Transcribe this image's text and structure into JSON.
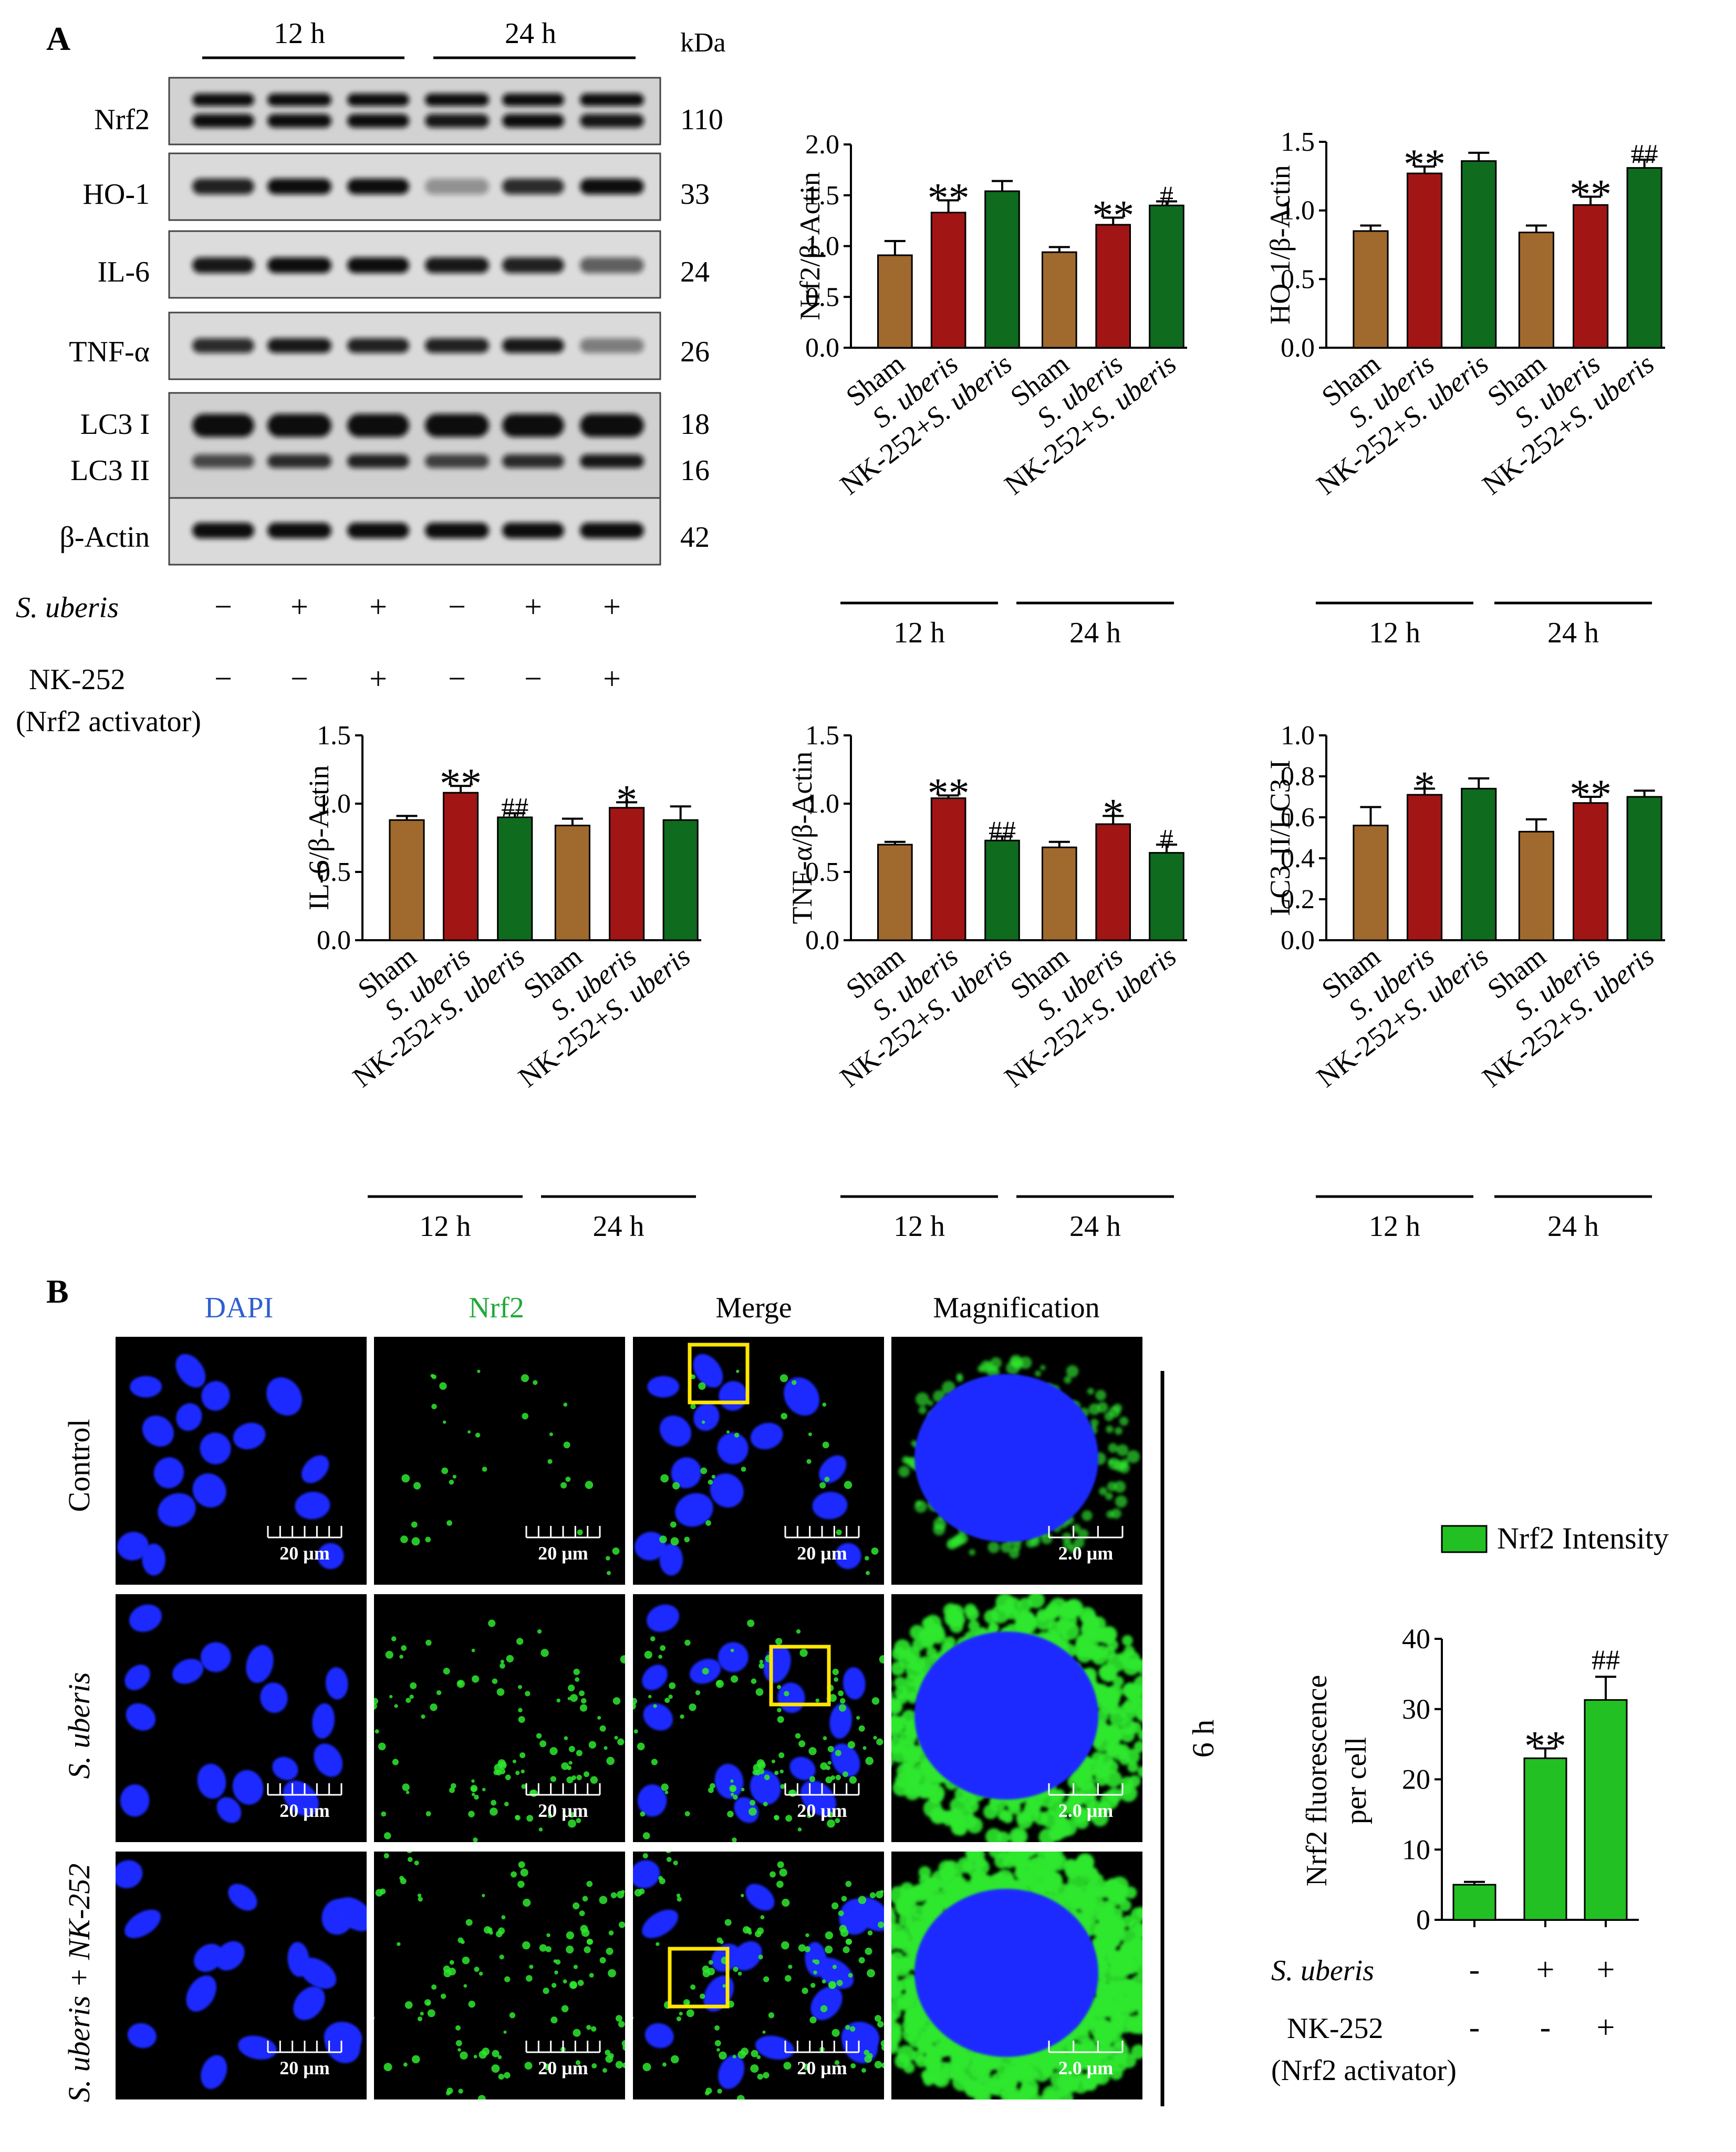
{
  "panel_a": {
    "label": "A",
    "timepoints": [
      "12 h",
      "24 h"
    ],
    "kda_header": "kDa",
    "blots": [
      {
        "name": "Nrf2",
        "kda": "110"
      },
      {
        "name": "HO-1",
        "kda": "33"
      },
      {
        "name": "IL-6",
        "kda": "24"
      },
      {
        "name": "TNF-α",
        "kda": "26"
      },
      {
        "name": "LC3 I",
        "kda": "18"
      },
      {
        "name": "LC3 II",
        "kda": "16"
      },
      {
        "name": "β-Actin",
        "kda": "42"
      }
    ],
    "treatment_rows": [
      {
        "label": "S. uberis",
        "signs": [
          "−",
          "+",
          "+",
          "−",
          "+",
          "+"
        ]
      },
      {
        "label": "NK-252",
        "sublabel": "(Nrf2 activator)",
        "signs": [
          "−",
          "−",
          "+",
          "−",
          "−",
          "+"
        ]
      }
    ]
  },
  "panel_b": {
    "label": "B",
    "column_headers": [
      "DAPI",
      "Nrf2",
      "Merge",
      "Magnification"
    ],
    "row_labels": [
      "Control",
      "S. uberis",
      "S. uberis + NK-252"
    ],
    "scale_bar": "20 μm",
    "scale_bar_mag": "2.0 μm",
    "time_label": "6 h",
    "colors": {
      "dapi": "#1a2bff",
      "nrf2": "#2ee82e",
      "box": "#ffe600",
      "dapi_label": "#2f5fd0",
      "nrf2_label": "#22a83a"
    }
  },
  "chart_data": [
    {
      "type": "bar",
      "ylabel": "Nrf2/β-Actin",
      "ylim": [
        0,
        2.0
      ],
      "yticks": [
        "0.0",
        "0.5",
        "1.0",
        "1.5",
        "2.0"
      ],
      "categories": [
        "Sham",
        "S. uberis",
        "NK-252+S. uberis"
      ],
      "groups": [
        "12 h",
        "24 h"
      ],
      "values": [
        [
          0.91,
          1.33,
          1.54
        ],
        [
          0.94,
          1.21,
          1.4
        ]
      ],
      "errors": [
        [
          0.14,
          0.12,
          0.1
        ],
        [
          0.05,
          0.07,
          0.04
        ]
      ],
      "annotations": [
        [
          "",
          "**",
          ""
        ],
        [
          "",
          "**",
          "#"
        ]
      ]
    },
    {
      "type": "bar",
      "ylabel": "HO-1/β-Actin",
      "ylim": [
        0,
        1.5
      ],
      "yticks": [
        "0.0",
        "0.5",
        "1.0",
        "1.5"
      ],
      "categories": [
        "Sham",
        "S. uberis",
        "NK-252+S. uberis"
      ],
      "groups": [
        "12 h",
        "24 h"
      ],
      "values": [
        [
          0.85,
          1.27,
          1.36
        ],
        [
          0.84,
          1.04,
          1.31
        ]
      ],
      "errors": [
        [
          0.04,
          0.05,
          0.06
        ],
        [
          0.05,
          0.06,
          0.06
        ]
      ],
      "annotations": [
        [
          "",
          "**",
          ""
        ],
        [
          "",
          "**",
          "##"
        ]
      ]
    },
    {
      "type": "bar",
      "ylabel": "IL-6/β-Actin",
      "ylim": [
        0,
        1.5
      ],
      "yticks": [
        "0.0",
        "0.5",
        "1.0",
        "1.5"
      ],
      "categories": [
        "Sham",
        "S. uberis",
        "NK-252+S. uberis"
      ],
      "groups": [
        "12 h",
        "24 h"
      ],
      "values": [
        [
          0.88,
          1.08,
          0.9
        ],
        [
          0.84,
          0.97,
          0.88
        ]
      ],
      "errors": [
        [
          0.03,
          0.05,
          0.03
        ],
        [
          0.05,
          0.04,
          0.1
        ]
      ],
      "annotations": [
        [
          "",
          "**",
          "##"
        ],
        [
          "",
          "*",
          ""
        ]
      ]
    },
    {
      "type": "bar",
      "ylabel": "TNF-α/β-Actin",
      "ylim": [
        0,
        1.5
      ],
      "yticks": [
        "0.0",
        "0.5",
        "1.0",
        "1.5"
      ],
      "categories": [
        "Sham",
        "S. uberis",
        "NK-252+S. uberis"
      ],
      "groups": [
        "12 h",
        "24 h"
      ],
      "values": [
        [
          0.7,
          1.04,
          0.73
        ],
        [
          0.68,
          0.85,
          0.64
        ]
      ],
      "errors": [
        [
          0.02,
          0.02,
          0.03
        ],
        [
          0.04,
          0.06,
          0.06
        ]
      ],
      "annotations": [
        [
          "",
          "**",
          "##"
        ],
        [
          "",
          "*",
          "#"
        ]
      ]
    },
    {
      "type": "bar",
      "ylabel": "LC3-II/LC3-I",
      "ylim": [
        0,
        1.0
      ],
      "yticks": [
        "0.0",
        "0.2",
        "0.4",
        "0.6",
        "0.8",
        "1.0"
      ],
      "categories": [
        "Sham",
        "S. uberis",
        "NK-252+S. uberis"
      ],
      "groups": [
        "12 h",
        "24 h"
      ],
      "values": [
        [
          0.56,
          0.71,
          0.74
        ],
        [
          0.53,
          0.67,
          0.7
        ]
      ],
      "errors": [
        [
          0.09,
          0.03,
          0.05
        ],
        [
          0.06,
          0.03,
          0.03
        ]
      ],
      "annotations": [
        [
          "",
          "*",
          ""
        ],
        [
          "",
          "**",
          ""
        ]
      ]
    },
    {
      "type": "bar",
      "legend": "Nrf2 Intensity",
      "ylabel_lines": [
        "Nrf2 fluorescence",
        "per cell"
      ],
      "ylim": [
        0,
        40
      ],
      "yticks": [
        "0",
        "10",
        "20",
        "30",
        "40"
      ],
      "values": [
        5.0,
        23.0,
        31.3
      ],
      "errors": [
        0.4,
        1.4,
        3.3
      ],
      "annotations": [
        "",
        "**",
        "##"
      ],
      "treatment_rows": [
        {
          "label": "S. uberis",
          "signs": [
            "-",
            "+",
            "+"
          ]
        },
        {
          "label": "NK-252",
          "sublabel": "(Nrf2 activator)",
          "signs": [
            "-",
            "-",
            "+"
          ]
        }
      ]
    }
  ]
}
